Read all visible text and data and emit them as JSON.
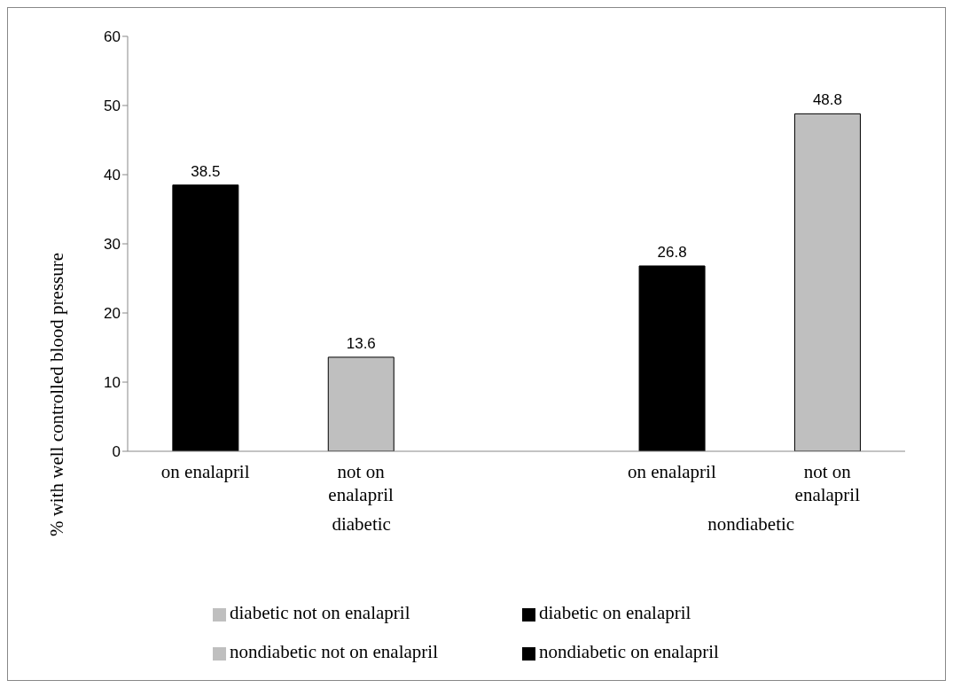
{
  "chart_data": {
    "type": "bar",
    "ylabel": "% with well controlled blood pressure",
    "categories": [
      "on enalapril",
      "not on enalapril",
      null,
      "on enalapril",
      "not on enalapril"
    ],
    "series": [
      {
        "name": "diabetic on enalapril",
        "color": "#000000",
        "values": [
          38.5,
          null,
          null,
          null,
          null
        ]
      },
      {
        "name": "diabetic not on enalapril",
        "color": "#bfbfbf",
        "values": [
          null,
          13.6,
          null,
          null,
          null
        ]
      },
      {
        "name": "nondiabetic on enalapril",
        "color": "#000000",
        "values": [
          null,
          null,
          null,
          26.8,
          null
        ]
      },
      {
        "name": "nondiabetic not on enalapril",
        "color": "#bfbfbf",
        "values": [
          null,
          null,
          null,
          null,
          48.8
        ]
      }
    ],
    "annotations": [
      "diabetic",
      "nondiabetic"
    ],
    "ylim": [
      0,
      60
    ],
    "yticks": [
      0,
      10,
      20,
      30,
      40,
      50,
      60
    ],
    "grid": false,
    "legend": "bottom",
    "data_labels": true
  }
}
